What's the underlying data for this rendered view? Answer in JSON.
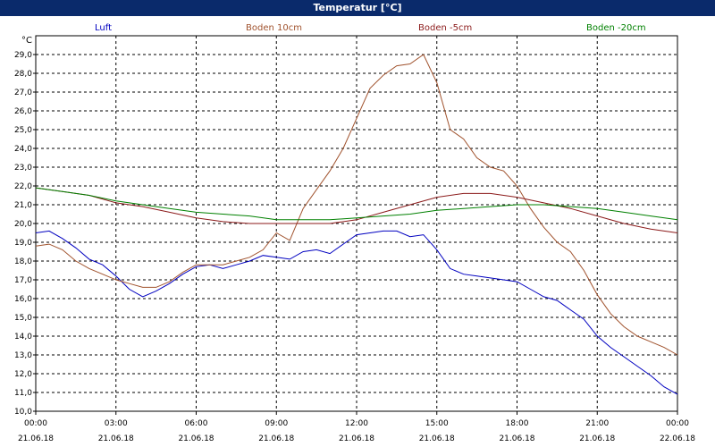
{
  "title": "Temperatur [°C]",
  "unit": "°C",
  "chart_data": {
    "type": "line",
    "title": "Temperatur [°C]",
    "ylabel": "°C",
    "ylim": [
      10.0,
      30.0
    ],
    "grid": true,
    "legend_placement": "top",
    "x_ticks": [
      {
        "time": "00:00",
        "date": "21.06.18"
      },
      {
        "time": "03:00",
        "date": "21.06.18"
      },
      {
        "time": "06:00",
        "date": "21.06.18"
      },
      {
        "time": "09:00",
        "date": "21.06.18"
      },
      {
        "time": "12:00",
        "date": "21.06.18"
      },
      {
        "time": "15:00",
        "date": "21.06.18"
      },
      {
        "time": "18:00",
        "date": "21.06.18"
      },
      {
        "time": "21:00",
        "date": "21.06.18"
      },
      {
        "time": "00:00",
        "date": "22.06.18"
      }
    ],
    "y_ticks": [
      "10,0",
      "11,0",
      "12,0",
      "13,0",
      "14,0",
      "15,0",
      "16,0",
      "17,0",
      "18,0",
      "19,0",
      "20,0",
      "21,0",
      "22,0",
      "23,0",
      "24,0",
      "25,0",
      "26,0",
      "27,0",
      "28,0",
      "29,0"
    ],
    "series": [
      {
        "name": "Luft",
        "color": "#0000c0",
        "x": [
          0,
          0.5,
          1,
          1.5,
          2,
          2.5,
          3,
          3.5,
          4,
          4.5,
          5,
          5.5,
          6,
          6.5,
          7,
          7.5,
          8,
          8.5,
          9,
          9.5,
          10,
          10.5,
          11,
          11.5,
          12,
          12.5,
          13,
          13.5,
          14,
          14.5,
          15,
          15.5,
          16,
          16.5,
          17,
          17.5,
          18,
          18.5,
          19,
          19.5,
          20,
          20.5,
          21,
          21.5,
          22,
          22.5,
          23,
          23.5,
          24
        ],
        "y": [
          19.5,
          19.6,
          19.2,
          18.7,
          18.1,
          17.8,
          17.2,
          16.5,
          16.1,
          16.4,
          16.8,
          17.3,
          17.7,
          17.8,
          17.6,
          17.8,
          18.0,
          18.3,
          18.2,
          18.1,
          18.5,
          18.6,
          18.4,
          18.9,
          19.4,
          19.5,
          19.6,
          19.6,
          19.3,
          19.4,
          18.6,
          17.6,
          17.3,
          17.2,
          17.1,
          17.0,
          16.9,
          16.5,
          16.1,
          15.9,
          15.4,
          14.9,
          14.0,
          13.4,
          12.9,
          12.4,
          11.9,
          11.3,
          10.9
        ]
      },
      {
        "name": "Boden 10cm",
        "color": "#a0522d",
        "x": [
          0,
          0.5,
          1,
          1.5,
          2,
          2.5,
          3,
          3.5,
          4,
          4.5,
          5,
          5.5,
          6,
          6.5,
          7,
          7.5,
          8,
          8.5,
          9,
          9.5,
          10,
          10.5,
          11,
          11.5,
          12,
          12.5,
          13,
          13.5,
          14,
          14.5,
          15,
          15.5,
          16,
          16.5,
          17,
          17.5,
          18,
          18.5,
          19,
          19.5,
          20,
          20.5,
          21,
          21.5,
          22,
          22.5,
          23,
          23.5,
          24
        ],
        "y": [
          18.8,
          18.9,
          18.6,
          18.0,
          17.6,
          17.3,
          17.0,
          16.8,
          16.6,
          16.6,
          16.9,
          17.4,
          17.8,
          17.8,
          17.8,
          18.0,
          18.2,
          18.6,
          19.5,
          19.1,
          20.8,
          21.8,
          22.8,
          24.0,
          25.6,
          27.2,
          27.9,
          28.4,
          28.5,
          29.0,
          27.5,
          25.0,
          24.5,
          23.5,
          23.0,
          22.8,
          22.0,
          20.8,
          19.8,
          19.0,
          18.5,
          17.5,
          16.2,
          15.2,
          14.5,
          14.0,
          13.7,
          13.4,
          13.0
        ]
      },
      {
        "name": "Boden -5cm",
        "color": "#8b1a1a",
        "x": [
          0,
          1,
          2,
          3,
          4,
          5,
          6,
          7,
          8,
          9,
          10,
          11,
          12,
          13,
          14,
          15,
          16,
          17,
          18,
          19,
          20,
          21,
          22,
          23,
          24
        ],
        "y": [
          21.9,
          21.7,
          21.5,
          21.1,
          20.9,
          20.6,
          20.3,
          20.1,
          20.0,
          20.0,
          20.0,
          20.0,
          20.2,
          20.6,
          21.0,
          21.4,
          21.6,
          21.6,
          21.4,
          21.1,
          20.8,
          20.4,
          20.0,
          19.7,
          19.5
        ]
      },
      {
        "name": "Boden -20cm",
        "color": "#008000",
        "x": [
          0,
          1,
          2,
          3,
          4,
          5,
          6,
          7,
          8,
          9,
          10,
          11,
          12,
          13,
          14,
          15,
          16,
          17,
          18,
          19,
          20,
          21,
          22,
          23,
          24
        ],
        "y": [
          21.9,
          21.7,
          21.5,
          21.2,
          21.0,
          20.8,
          20.6,
          20.5,
          20.4,
          20.2,
          20.2,
          20.2,
          20.3,
          20.4,
          20.5,
          20.7,
          20.8,
          20.9,
          21.0,
          21.0,
          20.9,
          20.8,
          20.6,
          20.4,
          20.2
        ]
      }
    ]
  }
}
